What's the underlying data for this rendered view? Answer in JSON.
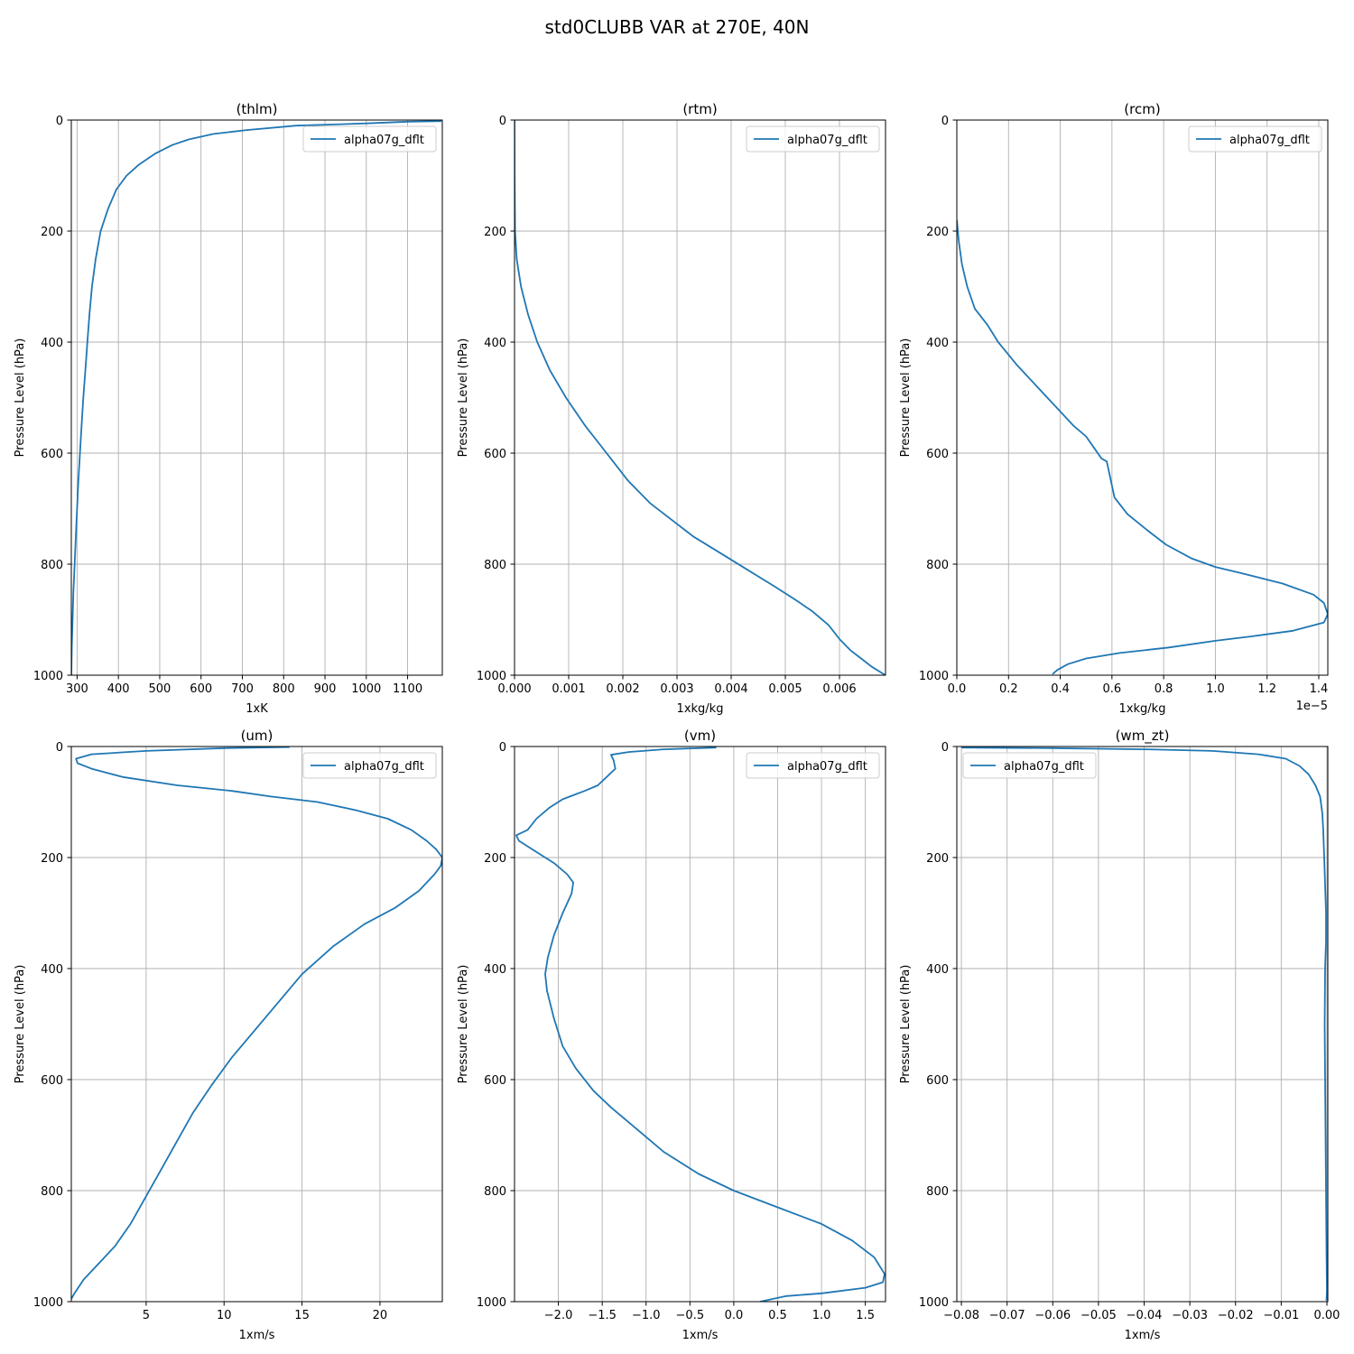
{
  "figure": {
    "suptitle": "std0CLUBB VAR at 270E, 40N"
  },
  "style": {
    "line_color": "#1f77b4",
    "grid_color": "#b0b0b0"
  },
  "chart_data": [
    {
      "type": "line",
      "title": "(thlm)",
      "xlabel": "1xK",
      "ylabel": "Pressure Level (hPa)",
      "xlim": [
        286,
        1184
      ],
      "ylim": [
        1000,
        0
      ],
      "y_inverted": true,
      "grid": true,
      "legend_loc": "upper right",
      "xticks": [
        300,
        400,
        500,
        600,
        700,
        800,
        900,
        1000,
        1100
      ],
      "xtick_labels": [
        "300",
        "400",
        "500",
        "600",
        "700",
        "800",
        "900",
        "1000",
        "1100"
      ],
      "yticks": [
        0,
        200,
        400,
        600,
        800,
        1000
      ],
      "ytick_labels": [
        "0",
        "200",
        "400",
        "600",
        "800",
        "1000"
      ],
      "offset_label": "",
      "series": [
        {
          "name": "alpha07g_dflt",
          "x": [
            286,
            287,
            289,
            291,
            294,
            297,
            300,
            303,
            307,
            311,
            315,
            320,
            325,
            330,
            336,
            345,
            357,
            375,
            395,
            420,
            450,
            490,
            530,
            570,
            630,
            710,
            830,
            1000,
            1100,
            1182
          ],
          "y": [
            1000,
            950,
            900,
            850,
            800,
            750,
            700,
            650,
            600,
            550,
            500,
            450,
            400,
            350,
            300,
            250,
            200,
            160,
            125,
            100,
            80,
            60,
            45,
            35,
            25,
            18,
            10,
            6,
            3,
            2
          ]
        }
      ]
    },
    {
      "type": "line",
      "title": "(rtm)",
      "xlabel": "1xkg/kg",
      "ylabel": "Pressure Level (hPa)",
      "xlim": [
        0,
        0.00685
      ],
      "ylim": [
        1000,
        0
      ],
      "y_inverted": true,
      "grid": true,
      "legend_loc": "upper right",
      "xticks": [
        0,
        0.001,
        0.002,
        0.003,
        0.004,
        0.005,
        0.006
      ],
      "xtick_labels": [
        "0.000",
        "0.001",
        "0.002",
        "0.003",
        "0.004",
        "0.005",
        "0.006"
      ],
      "yticks": [
        0,
        200,
        400,
        600,
        800,
        1000
      ],
      "ytick_labels": [
        "0",
        "200",
        "400",
        "600",
        "800",
        "1000"
      ],
      "offset_label": "",
      "series": [
        {
          "name": "alpha07g_dflt",
          "x": [
            0,
            2e-06,
            1e-05,
            4e-05,
            0.00012,
            0.00025,
            0.00042,
            0.00065,
            0.00095,
            0.0013,
            0.0017,
            0.0021,
            0.0025,
            0.0029,
            0.0033,
            0.0038,
            0.0043,
            0.0048,
            0.0052,
            0.0055,
            0.0058,
            0.006,
            0.0062,
            0.0064,
            0.0066,
            0.00685
          ],
          "y": [
            0,
            100,
            200,
            250,
            300,
            350,
            400,
            450,
            500,
            550,
            600,
            650,
            690,
            720,
            750,
            780,
            810,
            840,
            865,
            885,
            910,
            935,
            955,
            970,
            985,
            1000
          ]
        }
      ]
    },
    {
      "type": "line",
      "title": "(rcm)",
      "xlabel": "1xkg/kg",
      "ylabel": "Pressure Level (hPa)",
      "xlim": [
        0,
        1.435e-05
      ],
      "ylim": [
        1000,
        0
      ],
      "y_inverted": true,
      "grid": true,
      "legend_loc": "upper right",
      "xticks": [
        0,
        2e-06,
        4e-06,
        6e-06,
        8e-06,
        1e-05,
        1.2e-05,
        1.4e-05
      ],
      "xtick_labels": [
        "0.0",
        "0.2",
        "0.4",
        "0.6",
        "0.8",
        "1.0",
        "1.2",
        "1.4"
      ],
      "yticks": [
        0,
        200,
        400,
        600,
        800,
        1000
      ],
      "ytick_labels": [
        "0",
        "200",
        "400",
        "600",
        "800",
        "1000"
      ],
      "offset_label": "1e−5",
      "series": [
        {
          "name": "alpha07g_dflt",
          "x": [
            0,
            8e-08,
            2e-07,
            4e-07,
            7e-07,
            1.2e-06,
            1.6e-06,
            2.3e-06,
            3.1e-06,
            3.9e-06,
            4.5e-06,
            5e-06,
            5.3e-06,
            5.6e-06,
            5.8e-06,
            6.1e-06,
            6.6e-06,
            7.4e-06,
            8.1e-06,
            9.1e-06,
            1e-05,
            1.09e-05,
            1.26e-05,
            1.38e-05,
            1.42e-05,
            1.435e-05,
            1.42e-05,
            1.3e-05,
            1.14e-05,
            1e-05,
            8.2e-06,
            6.3e-06,
            5e-06,
            4.3e-06,
            3.9e-06,
            3.7e-06
          ],
          "y": [
            180,
            220,
            260,
            300,
            340,
            370,
            400,
            440,
            480,
            520,
            550,
            570,
            590,
            610,
            615,
            680,
            710,
            740,
            765,
            790,
            805,
            815,
            835,
            855,
            870,
            890,
            905,
            920,
            930,
            938,
            950,
            960,
            970,
            980,
            990,
            998
          ]
        }
      ]
    },
    {
      "type": "line",
      "title": "(um)",
      "xlabel": "1xm/s",
      "ylabel": "Pressure Level (hPa)",
      "xlim": [
        0.2,
        24
      ],
      "ylim": [
        1000,
        0
      ],
      "y_inverted": true,
      "grid": true,
      "legend_loc": "upper right",
      "xticks": [
        5,
        10,
        15,
        20
      ],
      "xtick_labels": [
        "5",
        "10",
        "15",
        "20"
      ],
      "yticks": [
        0,
        200,
        400,
        600,
        800,
        1000
      ],
      "ytick_labels": [
        "0",
        "200",
        "400",
        "600",
        "800",
        "1000"
      ],
      "offset_label": "",
      "series": [
        {
          "name": "alpha07g_dflt",
          "x": [
            14.2,
            10,
            5,
            1.5,
            0.5,
            0.6,
            1.5,
            3.5,
            7,
            10.5,
            13,
            16,
            18.5,
            20.5,
            22,
            23,
            23.6,
            24,
            23.9,
            23.5,
            22.5,
            21,
            19,
            17,
            15,
            13.5,
            12,
            10.5,
            9.2,
            8,
            7,
            6,
            5,
            4,
            3,
            2,
            1,
            0.4,
            0.2
          ],
          "y": [
            1,
            3,
            8,
            14,
            22,
            30,
            40,
            55,
            70,
            80,
            90,
            100,
            115,
            130,
            150,
            170,
            185,
            200,
            215,
            230,
            260,
            290,
            320,
            360,
            410,
            460,
            510,
            560,
            610,
            660,
            710,
            760,
            810,
            860,
            900,
            930,
            960,
            985,
            995
          ]
        }
      ]
    },
    {
      "type": "line",
      "title": "(vm)",
      "xlabel": "1xm/s",
      "ylabel": "Pressure Level (hPa)",
      "xlim": [
        -2.5,
        1.73
      ],
      "ylim": [
        1000,
        0
      ],
      "y_inverted": true,
      "grid": true,
      "legend_loc": "upper right",
      "xticks": [
        -2.0,
        -1.5,
        -1.0,
        -0.5,
        0.0,
        0.5,
        1.0,
        1.5
      ],
      "xtick_labels": [
        "−2.0",
        "−1.5",
        "−1.0",
        "−0.5",
        "0.0",
        "0.5",
        "1.0",
        "1.5"
      ],
      "yticks": [
        0,
        200,
        400,
        600,
        800,
        1000
      ],
      "ytick_labels": [
        "0",
        "200",
        "400",
        "600",
        "800",
        "1000"
      ],
      "offset_label": "",
      "series": [
        {
          "name": "alpha07g_dflt",
          "x": [
            -0.2,
            -0.8,
            -1.2,
            -1.4,
            -1.37,
            -1.35,
            -1.45,
            -1.55,
            -1.7,
            -1.95,
            -2.1,
            -2.25,
            -2.35,
            -2.48,
            -2.45,
            -2.3,
            -2.05,
            -1.9,
            -1.83,
            -1.85,
            -1.95,
            -2.05,
            -2.12,
            -2.15,
            -2.13,
            -2.05,
            -1.95,
            -1.8,
            -1.6,
            -1.4,
            -1.1,
            -0.8,
            -0.4,
            0.0,
            0.5,
            1.0,
            1.35,
            1.6,
            1.72,
            1.7,
            1.5,
            1.0,
            0.6,
            0.3
          ],
          "y": [
            2,
            5,
            10,
            15,
            25,
            40,
            55,
            70,
            80,
            95,
            110,
            130,
            150,
            160,
            170,
            185,
            210,
            230,
            245,
            265,
            300,
            340,
            380,
            410,
            440,
            490,
            540,
            580,
            620,
            650,
            690,
            730,
            770,
            800,
            830,
            860,
            890,
            920,
            950,
            965,
            975,
            985,
            990,
            1000
          ]
        }
      ]
    },
    {
      "type": "line",
      "title": "(wm_zt)",
      "xlabel": "1xm/s",
      "ylabel": "Pressure Level (hPa)",
      "xlim": [
        -0.081,
        0.0002
      ],
      "ylim": [
        1000,
        0
      ],
      "y_inverted": true,
      "grid": true,
      "legend_loc": "upper left",
      "xticks": [
        -0.08,
        -0.07,
        -0.06,
        -0.05,
        -0.04,
        -0.03,
        -0.02,
        -0.01,
        0.0
      ],
      "xtick_labels": [
        "−0.08",
        "−0.07",
        "−0.06",
        "−0.05",
        "−0.04",
        "−0.03",
        "−0.02",
        "−0.01",
        "0.00"
      ],
      "yticks": [
        0,
        200,
        400,
        600,
        800,
        1000
      ],
      "ytick_labels": [
        "0",
        "200",
        "400",
        "600",
        "800",
        "1000"
      ],
      "offset_label": "",
      "series": [
        {
          "name": "alpha07g_dflt",
          "x": [
            -0.08,
            -0.06,
            -0.04,
            -0.025,
            -0.015,
            -0.009,
            -0.006,
            -0.004,
            -0.0025,
            -0.0015,
            -0.001,
            -0.0008,
            -0.0006,
            -0.0004,
            -0.0002,
            -0.0002,
            -0.0004,
            -0.0005,
            -0.0004,
            -0.0003,
            -0.0002,
            -0.0001,
            0.0,
            -0.0001
          ],
          "y": [
            2,
            3,
            5,
            8,
            14,
            22,
            35,
            50,
            70,
            90,
            120,
            150,
            200,
            250,
            300,
            350,
            400,
            500,
            600,
            700,
            800,
            900,
            980,
            998
          ]
        }
      ]
    }
  ]
}
